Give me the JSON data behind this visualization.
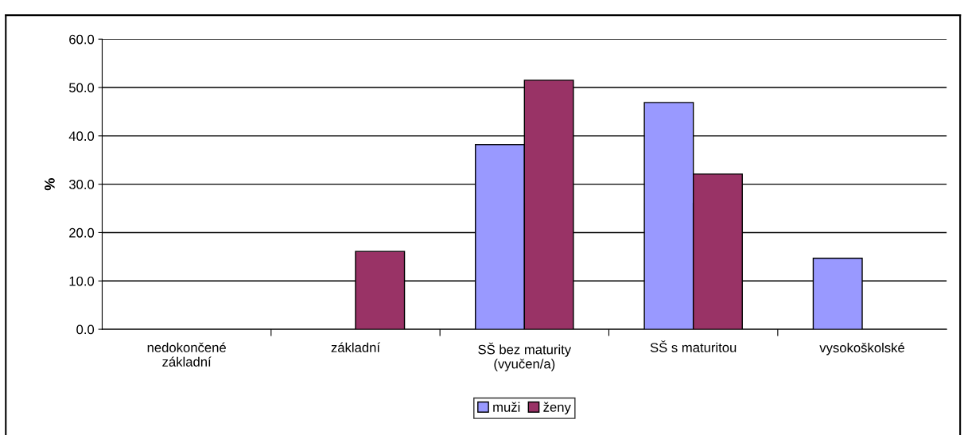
{
  "chart_data": {
    "type": "bar",
    "ylabel": "%",
    "categories": [
      "nedokončené\nzákladní",
      "základní",
      "SŠ bez maturity\n(vyučen/a)",
      "SŠ s maturitou",
      "vysokoškolské"
    ],
    "series": [
      {
        "name": "muži",
        "color": "#9999ff",
        "values": [
          null,
          null,
          38.2,
          46.9,
          14.7
        ]
      },
      {
        "name": "ženy",
        "color": "#993366",
        "values": [
          null,
          16.1,
          51.5,
          32.1,
          null
        ]
      }
    ],
    "ylim": [
      0,
      60
    ],
    "yticks": [
      {
        "value": 0,
        "label": "0.0"
      },
      {
        "value": 10,
        "label": "10.0"
      },
      {
        "value": 20,
        "label": "20.0"
      },
      {
        "value": 30,
        "label": "30.0"
      },
      {
        "value": 40,
        "label": "40.0"
      },
      {
        "value": 50,
        "label": "50.0"
      },
      {
        "value": 60,
        "label": "60.0"
      }
    ],
    "grid": "y",
    "legend": "bottom"
  }
}
